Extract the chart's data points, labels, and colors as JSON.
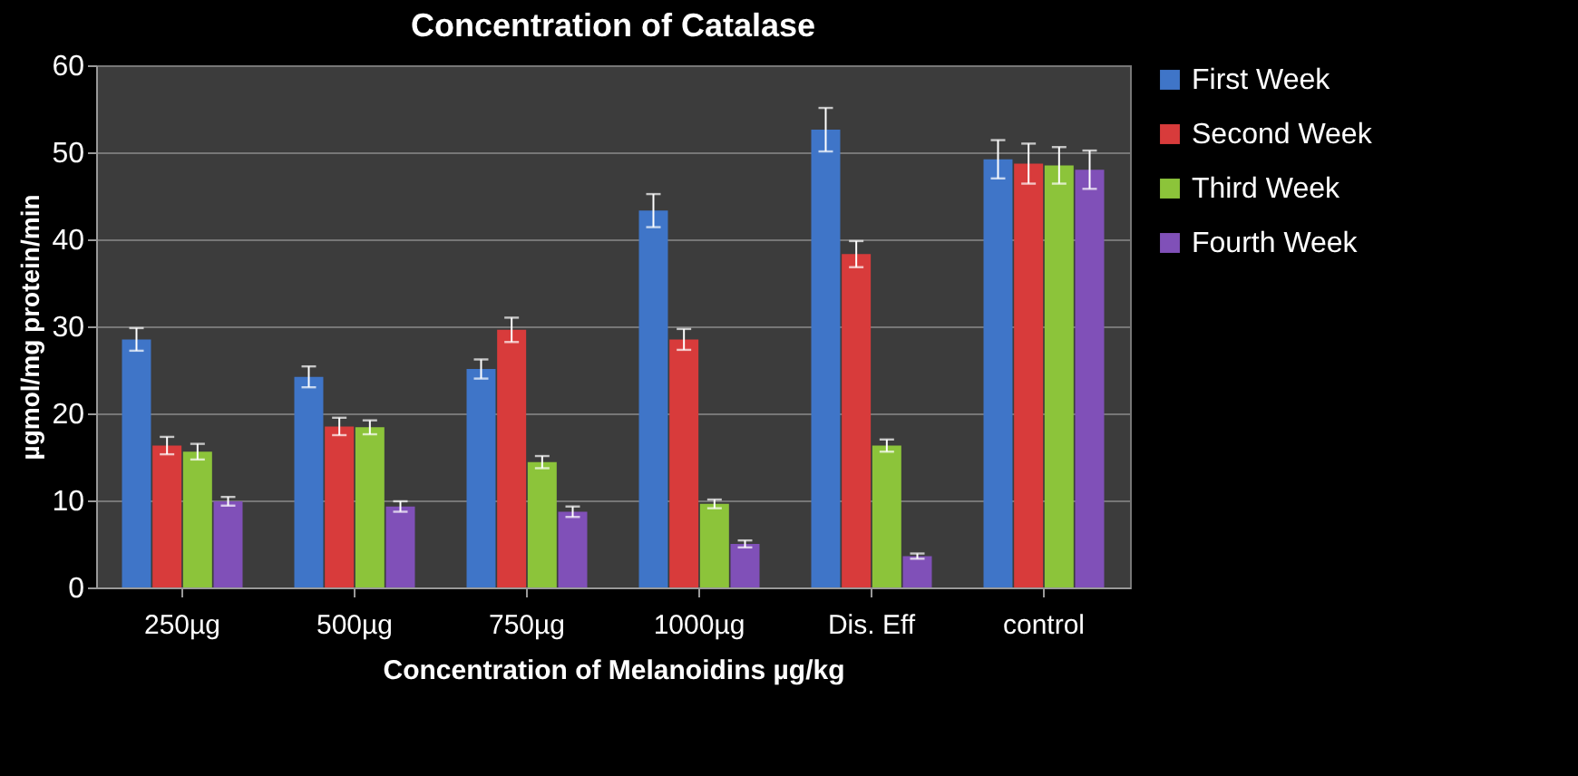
{
  "chart_data": {
    "type": "bar",
    "title": "Concentration of Catalase",
    "xlabel": "Concentration of Melanoidins µg/kg",
    "ylabel": "µgmol/mg protein/min",
    "categories": [
      "250µg",
      "500µg",
      "750µg",
      "1000µg",
      "Dis. Eff",
      "control"
    ],
    "series": [
      {
        "name": "First Week",
        "color": "#3f75c8",
        "values": [
          28.5,
          24.2,
          25.1,
          43.3,
          52.6,
          49.2
        ],
        "errors": [
          1.3,
          1.2,
          1.1,
          1.9,
          2.5,
          2.2
        ]
      },
      {
        "name": "Second Week",
        "color": "#d83b3b",
        "values": [
          16.3,
          18.5,
          29.6,
          28.5,
          38.3,
          48.7
        ],
        "errors": [
          1.0,
          1.0,
          1.4,
          1.2,
          1.5,
          2.3
        ]
      },
      {
        "name": "Third Week",
        "color": "#8cc43a",
        "values": [
          15.6,
          18.4,
          14.4,
          9.6,
          16.3,
          48.5
        ],
        "errors": [
          0.9,
          0.8,
          0.7,
          0.5,
          0.7,
          2.1
        ]
      },
      {
        "name": "Fourth Week",
        "color": "#8050b8",
        "values": [
          9.9,
          9.3,
          8.7,
          5.0,
          3.6,
          48.0
        ],
        "errors": [
          0.5,
          0.6,
          0.6,
          0.4,
          0.3,
          2.2
        ]
      }
    ],
    "ylim": [
      0,
      60
    ],
    "yticks": [
      0,
      10,
      20,
      30,
      40,
      50,
      60
    ],
    "grid": "y",
    "legend": "right"
  }
}
